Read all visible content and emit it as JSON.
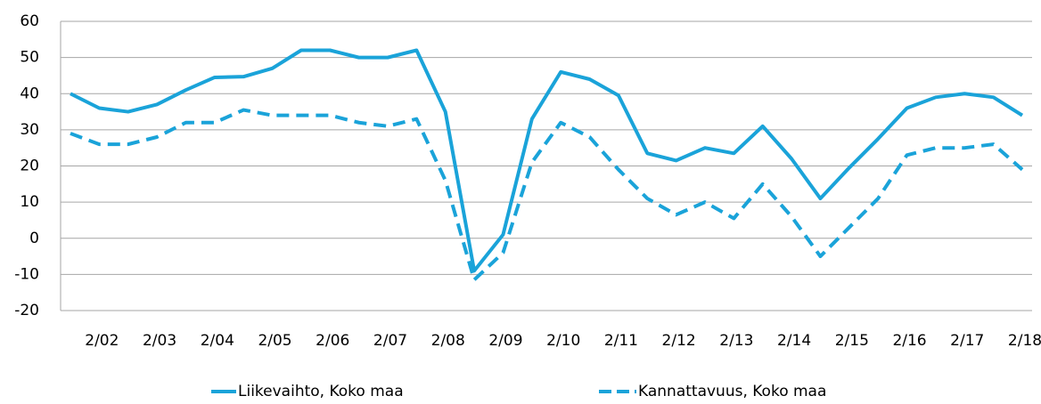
{
  "chart_data": {
    "type": "line",
    "categories": [
      null,
      "2/02",
      null,
      "2/03",
      null,
      "2/04",
      null,
      "2/05",
      null,
      "2/06",
      null,
      "2/07",
      null,
      "2/08",
      null,
      "2/09",
      null,
      "2/10",
      null,
      "2/11",
      null,
      "2/12",
      null,
      "2/13",
      null,
      "2/14",
      null,
      "2/15",
      null,
      "2/16",
      null,
      "2/17",
      null,
      "2/18"
    ],
    "series": [
      {
        "name": "Liikevaihto, Koko maa",
        "color": "#1aa3d9",
        "dash": false,
        "values": [
          40,
          36,
          35,
          37,
          41,
          44.5,
          44.7,
          47,
          52,
          52,
          50,
          50,
          52,
          35,
          -9,
          1,
          33,
          46,
          44,
          39.5,
          23.5,
          21.5,
          25,
          23.5,
          31,
          22,
          11,
          19.5,
          27.5,
          36,
          39,
          40,
          39,
          34
        ]
      },
      {
        "name": "Kannattavuus, Koko maa",
        "color": "#1aa3d9",
        "dash": true,
        "values": [
          29,
          26,
          26,
          28,
          32,
          32,
          35.5,
          34,
          34,
          34,
          32,
          31,
          33,
          16,
          -11.5,
          -4,
          21,
          32,
          28,
          19,
          11,
          6.5,
          10,
          5.5,
          15,
          6,
          -5,
          3,
          11,
          23,
          25,
          25,
          26,
          19
        ]
      }
    ],
    "ylim": [
      -20,
      60
    ],
    "yticks": [
      -20,
      -10,
      0,
      10,
      20,
      30,
      40,
      50,
      60
    ],
    "grid": true,
    "legend": "bottom"
  }
}
